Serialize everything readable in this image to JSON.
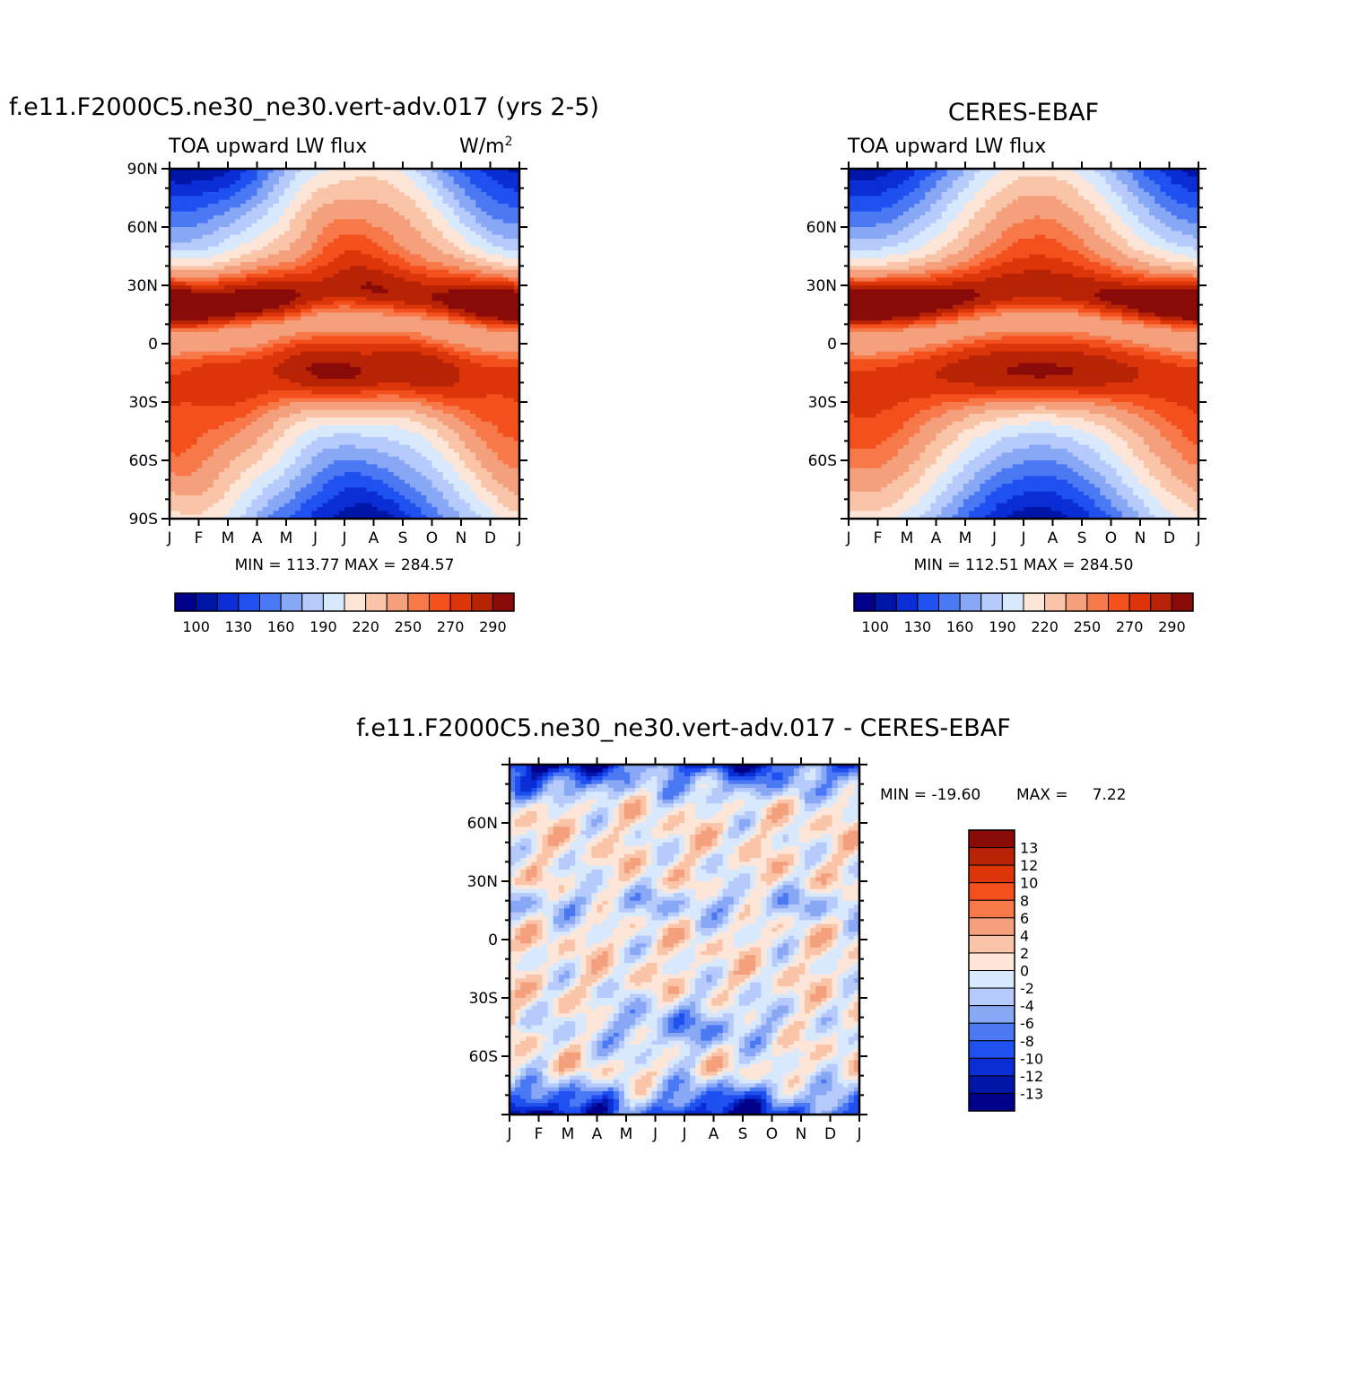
{
  "palette": {
    "blues": [
      "#00008a",
      "#0016a8",
      "#0a2dd6",
      "#1f50f0",
      "#4b78f3",
      "#88a8f6",
      "#b6cbfb",
      "#d8e8fd"
    ],
    "reds": [
      "#fde6d8",
      "#f9c4a7",
      "#f5a07d",
      "#f77849",
      "#f4501d",
      "#dd350a",
      "#b82306",
      "#8a0a0a"
    ]
  },
  "panels": [
    {
      "id": "model",
      "title": "f.e11.F2000C5.ne30_ne30.vert-adv.017 (yrs 2-5)",
      "left_subtitle": "TOA upward LW flux",
      "right_subtitle": "W/m",
      "right_subtitle_sup": "2",
      "stats": "MIN =  113.77  MAX =  284.57",
      "y_labels": [
        "90N",
        "60N",
        "30N",
        "0",
        "30S",
        "60S",
        "90S"
      ],
      "x_labels": [
        "J",
        "F",
        "M",
        "A",
        "M",
        "J",
        "J",
        "A",
        "S",
        "O",
        "N",
        "D",
        "J"
      ],
      "field": "model",
      "colorbar_labels": [
        "100",
        "130",
        "160",
        "190",
        "220",
        "250",
        "270",
        "290"
      ]
    },
    {
      "id": "obs",
      "title": "CERES-EBAF",
      "left_subtitle": "TOA upward LW flux",
      "stats": "MIN =  112.51  MAX =  284.50",
      "y_labels": [
        "60N",
        "30N",
        "0",
        "30S",
        "60S"
      ],
      "x_labels": [
        "J",
        "F",
        "M",
        "A",
        "M",
        "J",
        "J",
        "A",
        "S",
        "O",
        "N",
        "D",
        "J"
      ],
      "field": "obs",
      "colorbar_labels": [
        "100",
        "130",
        "160",
        "190",
        "220",
        "250",
        "270",
        "290"
      ]
    },
    {
      "id": "diff",
      "title": "f.e11.F2000C5.ne30_ne30.vert-adv.017 - CERES-EBAF",
      "stats_min": "MIN = -19.60",
      "stats_max": "MAX =     7.22",
      "y_labels": [
        "60N",
        "30N",
        "0",
        "30S",
        "60S"
      ],
      "x_labels": [
        "J",
        "F",
        "M",
        "A",
        "M",
        "J",
        "J",
        "A",
        "S",
        "O",
        "N",
        "D",
        "J"
      ],
      "field": "diff",
      "colorbar_labels": [
        "13",
        "12",
        "10",
        "8",
        "6",
        "4",
        "2",
        "0",
        "-2",
        "-4",
        "-6",
        "-8",
        "-10",
        "-12",
        "-13"
      ]
    }
  ],
  "chart_data": [
    {
      "type": "heatmap",
      "title": "f.e11.F2000C5.ne30_ne30.vert-adv.017 (yrs 2-5)",
      "subtitle": "TOA upward LW flux",
      "units": "W/m2",
      "x": [
        "J",
        "F",
        "M",
        "A",
        "M",
        "J",
        "J",
        "A",
        "S",
        "O",
        "N",
        "D",
        "J"
      ],
      "y_range": [
        -90,
        90
      ],
      "min": 113.77,
      "max": 284.57,
      "levels": [
        100,
        115,
        130,
        145,
        160,
        175,
        190,
        205,
        220,
        235,
        250,
        260,
        270,
        280,
        290
      ]
    },
    {
      "type": "heatmap",
      "title": "CERES-EBAF",
      "subtitle": "TOA upward LW flux",
      "units": "W/m2",
      "x": [
        "J",
        "F",
        "M",
        "A",
        "M",
        "J",
        "J",
        "A",
        "S",
        "O",
        "N",
        "D",
        "J"
      ],
      "y_range": [
        -90,
        90
      ],
      "min": 112.51,
      "max": 284.5,
      "levels": [
        100,
        115,
        130,
        145,
        160,
        175,
        190,
        205,
        220,
        235,
        250,
        260,
        270,
        280,
        290
      ]
    },
    {
      "type": "heatmap",
      "title": "f.e11.F2000C5.ne30_ne30.vert-adv.017 - CERES-EBAF",
      "x": [
        "J",
        "F",
        "M",
        "A",
        "M",
        "J",
        "J",
        "A",
        "S",
        "O",
        "N",
        "D",
        "J"
      ],
      "y_range": [
        -90,
        90
      ],
      "min": -19.6,
      "max": 7.22,
      "levels": [
        -13,
        -12,
        -10,
        -8,
        -6,
        -4,
        -2,
        0,
        2,
        4,
        6,
        8,
        10,
        12,
        13
      ]
    }
  ]
}
